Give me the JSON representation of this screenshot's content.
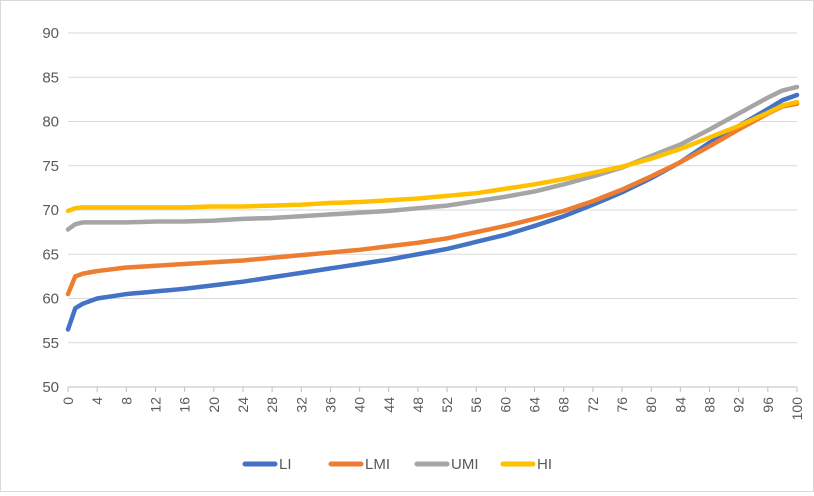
{
  "chart_data": {
    "type": "line",
    "title": "",
    "xlabel": "",
    "ylabel": "",
    "x_start": 0,
    "x_end": 100,
    "x_step": 1,
    "x_ticks": [
      0,
      4,
      8,
      12,
      16,
      20,
      24,
      28,
      32,
      36,
      40,
      44,
      48,
      52,
      56,
      60,
      64,
      68,
      72,
      76,
      80,
      84,
      88,
      92,
      96,
      100
    ],
    "ylim": [
      50,
      90
    ],
    "y_ticks": [
      50,
      55,
      60,
      65,
      70,
      75,
      80,
      85,
      90
    ],
    "grid": "horizontal",
    "legend_position": "bottom",
    "series": [
      {
        "name": "LI",
        "color": "#4472C4",
        "anchors": [
          [
            0,
            56.5
          ],
          [
            1,
            58.9
          ],
          [
            2,
            59.4
          ],
          [
            4,
            60.0
          ],
          [
            8,
            60.5
          ],
          [
            12,
            60.8
          ],
          [
            16,
            61.1
          ],
          [
            20,
            61.5
          ],
          [
            24,
            61.9
          ],
          [
            28,
            62.4
          ],
          [
            32,
            62.9
          ],
          [
            36,
            63.4
          ],
          [
            40,
            63.9
          ],
          [
            44,
            64.4
          ],
          [
            48,
            65.0
          ],
          [
            52,
            65.6
          ],
          [
            56,
            66.4
          ],
          [
            60,
            67.2
          ],
          [
            64,
            68.2
          ],
          [
            68,
            69.3
          ],
          [
            72,
            70.6
          ],
          [
            76,
            72.0
          ],
          [
            80,
            73.6
          ],
          [
            84,
            75.4
          ],
          [
            88,
            77.6
          ],
          [
            92,
            79.5
          ],
          [
            96,
            81.4
          ],
          [
            98,
            82.4
          ],
          [
            100,
            83.0
          ]
        ]
      },
      {
        "name": "LMI",
        "color": "#ED7D31",
        "anchors": [
          [
            0,
            60.5
          ],
          [
            1,
            62.5
          ],
          [
            2,
            62.8
          ],
          [
            4,
            63.1
          ],
          [
            8,
            63.5
          ],
          [
            12,
            63.7
          ],
          [
            16,
            63.9
          ],
          [
            20,
            64.1
          ],
          [
            24,
            64.3
          ],
          [
            28,
            64.6
          ],
          [
            32,
            64.9
          ],
          [
            36,
            65.2
          ],
          [
            40,
            65.5
          ],
          [
            44,
            65.9
          ],
          [
            48,
            66.3
          ],
          [
            52,
            66.8
          ],
          [
            56,
            67.5
          ],
          [
            60,
            68.2
          ],
          [
            64,
            69.0
          ],
          [
            68,
            69.9
          ],
          [
            72,
            71.0
          ],
          [
            76,
            72.3
          ],
          [
            80,
            73.8
          ],
          [
            84,
            75.4
          ],
          [
            88,
            77.2
          ],
          [
            92,
            79.1
          ],
          [
            96,
            80.9
          ],
          [
            98,
            81.7
          ],
          [
            100,
            82.0
          ]
        ]
      },
      {
        "name": "UMI",
        "color": "#A5A5A5",
        "anchors": [
          [
            0,
            67.8
          ],
          [
            1,
            68.4
          ],
          [
            2,
            68.6
          ],
          [
            4,
            68.6
          ],
          [
            8,
            68.6
          ],
          [
            12,
            68.7
          ],
          [
            16,
            68.7
          ],
          [
            20,
            68.8
          ],
          [
            24,
            69.0
          ],
          [
            28,
            69.1
          ],
          [
            32,
            69.3
          ],
          [
            36,
            69.5
          ],
          [
            40,
            69.7
          ],
          [
            44,
            69.9
          ],
          [
            48,
            70.2
          ],
          [
            52,
            70.5
          ],
          [
            56,
            71.0
          ],
          [
            60,
            71.5
          ],
          [
            64,
            72.1
          ],
          [
            68,
            72.9
          ],
          [
            72,
            73.8
          ],
          [
            76,
            74.8
          ],
          [
            80,
            76.1
          ],
          [
            84,
            77.4
          ],
          [
            88,
            79.1
          ],
          [
            92,
            80.9
          ],
          [
            96,
            82.7
          ],
          [
            98,
            83.5
          ],
          [
            100,
            83.9
          ]
        ]
      },
      {
        "name": "HI",
        "color": "#FFC000",
        "anchors": [
          [
            0,
            69.9
          ],
          [
            1,
            70.2
          ],
          [
            2,
            70.3
          ],
          [
            4,
            70.3
          ],
          [
            8,
            70.3
          ],
          [
            12,
            70.3
          ],
          [
            16,
            70.3
          ],
          [
            20,
            70.4
          ],
          [
            24,
            70.4
          ],
          [
            28,
            70.5
          ],
          [
            32,
            70.6
          ],
          [
            36,
            70.8
          ],
          [
            40,
            70.9
          ],
          [
            44,
            71.1
          ],
          [
            48,
            71.3
          ],
          [
            52,
            71.6
          ],
          [
            56,
            71.9
          ],
          [
            60,
            72.4
          ],
          [
            64,
            72.9
          ],
          [
            68,
            73.5
          ],
          [
            72,
            74.2
          ],
          [
            76,
            74.9
          ],
          [
            80,
            75.8
          ],
          [
            84,
            76.9
          ],
          [
            88,
            78.2
          ],
          [
            92,
            79.5
          ],
          [
            96,
            81.0
          ],
          [
            98,
            81.8
          ],
          [
            100,
            82.2
          ]
        ]
      }
    ]
  }
}
